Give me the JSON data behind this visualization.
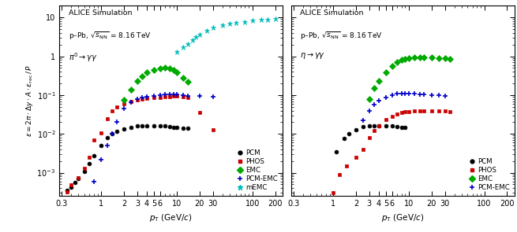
{
  "left_panel": {
    "title_line1": "ALICE Simulation",
    "title_line2": "p–Pb, $\\sqrt{s_{\\mathrm{NN}}}$ = 8.16 TeV",
    "title_line3": "$\\pi^0 \\rightarrow \\gamma\\gamma$",
    "ylabel": "$\\varepsilon = 2\\pi \\cdot \\Delta y \\cdot A \\cdot \\varepsilon_{\\rm rec}\\,/\\,P$",
    "xlabel": "$p_{\\rm T}$ (GeV/$c$)",
    "xlim": [
      0.28,
      250
    ],
    "ylim": [
      0.00025,
      20
    ],
    "PCM": {
      "x": [
        0.35,
        0.4,
        0.45,
        0.5,
        0.6,
        0.7,
        0.8,
        1.0,
        1.2,
        1.4,
        1.6,
        2.0,
        2.5,
        3.0,
        3.5,
        4.0,
        5.0,
        6.0,
        7.0,
        8.0,
        9.0,
        10.0,
        12.0,
        14.0
      ],
      "y": [
        0.00035,
        0.00042,
        0.00055,
        0.0007,
        0.0011,
        0.0017,
        0.0028,
        0.005,
        0.008,
        0.01,
        0.0115,
        0.0135,
        0.015,
        0.0158,
        0.0162,
        0.0165,
        0.0165,
        0.0162,
        0.0158,
        0.0155,
        0.015,
        0.0145,
        0.014,
        0.0138
      ],
      "color": "#000000",
      "marker": "o",
      "ms": 3.5
    },
    "PHOS": {
      "x": [
        0.35,
        0.4,
        0.5,
        0.6,
        0.7,
        0.8,
        1.0,
        1.2,
        1.4,
        1.6,
        2.0,
        2.5,
        3.0,
        3.5,
        4.0,
        5.0,
        6.0,
        7.0,
        8.0,
        9.0,
        10.0,
        12.0,
        14.0,
        20.0,
        30.0
      ],
      "y": [
        0.00032,
        0.00048,
        0.00075,
        0.0013,
        0.0025,
        0.007,
        0.0105,
        0.025,
        0.04,
        0.05,
        0.06,
        0.07,
        0.075,
        0.08,
        0.083,
        0.086,
        0.088,
        0.09,
        0.092,
        0.095,
        0.095,
        0.09,
        0.085,
        0.035,
        0.013
      ],
      "color": "#cc0000",
      "marker": "s",
      "ms": 3.5
    },
    "EMC": {
      "x": [
        2.0,
        2.5,
        3.0,
        3.5,
        4.0,
        5.0,
        6.0,
        7.0,
        8.0,
        9.0,
        10.0,
        12.0,
        14.0
      ],
      "y": [
        0.075,
        0.14,
        0.23,
        0.31,
        0.39,
        0.45,
        0.49,
        0.51,
        0.49,
        0.45,
        0.38,
        0.28,
        0.22
      ],
      "color": "#00aa00",
      "marker": "D",
      "ms": 4.0
    },
    "PCM_EMC": {
      "x": [
        0.8,
        1.0,
        1.2,
        1.4,
        1.6,
        2.0,
        2.5,
        3.0,
        3.5,
        4.0,
        5.0,
        6.0,
        7.0,
        8.0,
        9.0,
        10.0,
        12.0,
        14.0,
        20.0,
        30.0
      ],
      "y": [
        0.0006,
        0.0022,
        0.005,
        0.01,
        0.02,
        0.045,
        0.065,
        0.078,
        0.085,
        0.09,
        0.095,
        0.1,
        0.102,
        0.102,
        0.102,
        0.102,
        0.098,
        0.095,
        0.095,
        0.09
      ],
      "color": "#0000cc",
      "marker": "+",
      "ms": 4.5
    },
    "mEMC": {
      "x": [
        10.0,
        12.0,
        14.0,
        16.0,
        18.0,
        20.0,
        25.0,
        30.0,
        40.0,
        50.0,
        60.0,
        80.0,
        100.0,
        130.0,
        160.0,
        200.0
      ],
      "y": [
        1.3,
        1.7,
        2.1,
        2.6,
        3.1,
        3.6,
        4.5,
        5.4,
        6.3,
        6.9,
        7.3,
        7.8,
        8.2,
        8.6,
        8.9,
        9.3
      ],
      "color": "#00bbbb",
      "marker": "*",
      "ms": 5.0
    }
  },
  "right_panel": {
    "title_line1": "ALICE Simulation",
    "title_line2": "p–Pb, $\\sqrt{s_{\\mathrm{NN}}}$ = 8.16 TeV",
    "title_line3": "$\\eta \\rightarrow \\gamma\\gamma$",
    "ylabel": "$\\varepsilon = 2\\pi \\cdot \\Delta y \\cdot A \\cdot \\varepsilon_{\\rm rec}\\,/\\,P$",
    "xlabel": "$p_{\\rm T}$ (GeV/$c$)",
    "xlim": [
      0.28,
      250
    ],
    "ylim": [
      0.00025,
      20
    ],
    "PCM": {
      "x": [
        1.1,
        1.4,
        1.6,
        2.0,
        2.5,
        3.0,
        3.5,
        4.0,
        5.0,
        6.0,
        7.0,
        8.0,
        9.0
      ],
      "y": [
        0.0035,
        0.0075,
        0.01,
        0.013,
        0.0155,
        0.0165,
        0.0165,
        0.0165,
        0.0162,
        0.0158,
        0.0155,
        0.015,
        0.0145
      ],
      "color": "#000000",
      "marker": "o",
      "ms": 3.5
    },
    "PHOS": {
      "x": [
        1.0,
        1.2,
        1.5,
        2.0,
        2.5,
        3.0,
        3.5,
        4.0,
        5.0,
        6.0,
        7.0,
        8.0,
        9.0,
        10.0,
        12.0,
        14.0,
        16.0,
        20.0,
        25.0,
        30.0,
        35.0
      ],
      "y": [
        0.0003,
        0.0009,
        0.0015,
        0.0025,
        0.004,
        0.008,
        0.012,
        0.016,
        0.023,
        0.028,
        0.032,
        0.035,
        0.037,
        0.038,
        0.039,
        0.039,
        0.039,
        0.039,
        0.039,
        0.039,
        0.038
      ],
      "color": "#cc0000",
      "marker": "s",
      "ms": 3.5
    },
    "EMC": {
      "x": [
        3.0,
        3.5,
        4.0,
        5.0,
        6.0,
        7.0,
        8.0,
        9.0,
        10.0,
        12.0,
        14.0,
        16.0,
        20.0,
        25.0,
        30.0,
        35.0
      ],
      "y": [
        0.08,
        0.15,
        0.23,
        0.38,
        0.55,
        0.7,
        0.8,
        0.85,
        0.9,
        0.95,
        0.95,
        0.95,
        0.92,
        0.9,
        0.88,
        0.85
      ],
      "color": "#00aa00",
      "marker": "D",
      "ms": 4.0
    },
    "PCM_EMC": {
      "x": [
        2.5,
        3.0,
        3.5,
        4.0,
        5.0,
        6.0,
        7.0,
        8.0,
        9.0,
        10.0,
        12.0,
        14.0,
        16.0,
        20.0,
        25.0,
        30.0
      ],
      "y": [
        0.022,
        0.04,
        0.058,
        0.072,
        0.088,
        0.1,
        0.108,
        0.11,
        0.11,
        0.11,
        0.108,
        0.105,
        0.102,
        0.1,
        0.1,
        0.095
      ],
      "color": "#0000cc",
      "marker": "+",
      "ms": 4.5
    }
  },
  "xticks_major": [
    0.3,
    1,
    2,
    3,
    4,
    5,
    6,
    10,
    20,
    30,
    100,
    200
  ],
  "xtick_labels": [
    "0.3",
    "1",
    "2",
    "3",
    "4",
    "5",
    "6",
    "10",
    "20",
    "30",
    "100",
    "200"
  ],
  "yticks_major": [
    0.001,
    0.01,
    0.1,
    1,
    10
  ],
  "ytick_labels": [
    "10$^{-3}$",
    "10$^{-2}$",
    "10$^{-1}$",
    "1",
    "10"
  ]
}
